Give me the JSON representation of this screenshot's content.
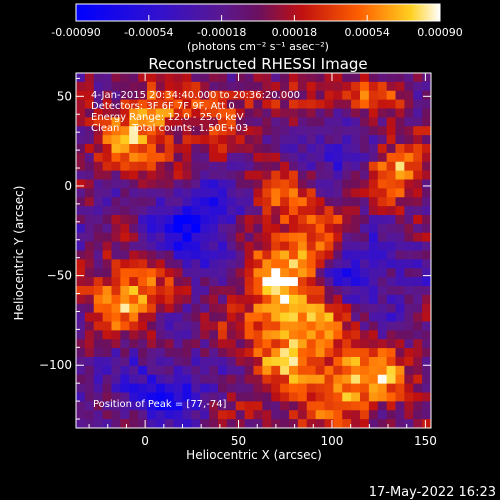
{
  "chart_data": {
    "type": "heatmap",
    "title": "Reconstructed RHESSI Image",
    "colorbar": {
      "ticks": [
        "-0.00090",
        "-0.00054",
        "-0.00018",
        "0.00018",
        "0.00054",
        "0.00090"
      ],
      "tick_values": [
        -0.0009,
        -0.00054,
        -0.00018,
        0.00018,
        0.00054,
        0.0009
      ],
      "range": [
        -0.0009,
        0.0009
      ],
      "unit_label": "(photons cm⁻² s⁻¹ asec⁻²)",
      "colormap": "blue-purple-red-orange-yellow-white"
    },
    "xlabel": "Heliocentric X (arcsec)",
    "ylabel": "Heliocentric Y (arcsec)",
    "xlim": [
      -37,
      153
    ],
    "ylim": [
      -135,
      63
    ],
    "x_ticks": [
      0,
      50,
      100,
      150
    ],
    "y_ticks": [
      50,
      0,
      -50,
      -100
    ],
    "annotations": [
      "4-Jan-2015 20:34:40.000 to 20:36:20.000",
      "Detectors: 3F 6F 7F 9F, Att 0",
      "Energy Range: 12.0 - 25.0 keV",
      "Clean    Total counts: 1.50E+03"
    ],
    "peak_label": "Position of Peak = [77,-74]",
    "peak_position": [
      77,
      -74
    ],
    "bright_features": [
      {
        "x": 80,
        "y": -60,
        "w": 60,
        "h": 130,
        "v": 0.0009
      },
      {
        "x": -10,
        "y": -60,
        "w": 45,
        "h": 40,
        "v": 0.0008
      },
      {
        "x": 0,
        "y": 30,
        "w": 55,
        "h": 55,
        "v": 0.0007
      },
      {
        "x": 135,
        "y": 10,
        "w": 30,
        "h": 40,
        "v": 0.0007
      },
      {
        "x": 120,
        "y": -110,
        "w": 50,
        "h": 40,
        "v": 0.0007
      },
      {
        "x": 40,
        "y": 45,
        "w": 35,
        "h": 25,
        "v": 0.0005
      },
      {
        "x": 110,
        "y": 50,
        "w": 60,
        "h": 20,
        "v": 0.0005
      }
    ],
    "dark_features": [
      {
        "x": 30,
        "y": -20,
        "w": 50,
        "h": 45,
        "v": -0.0007
      },
      {
        "x": 110,
        "y": -50,
        "w": 45,
        "h": 40,
        "v": -0.0007
      },
      {
        "x": 100,
        "y": 20,
        "w": 35,
        "h": 35,
        "v": -0.0005
      },
      {
        "x": 10,
        "y": -115,
        "w": 50,
        "h": 30,
        "v": -0.0005
      }
    ]
  },
  "footer": {
    "date": "17-May-2022 16:23"
  }
}
